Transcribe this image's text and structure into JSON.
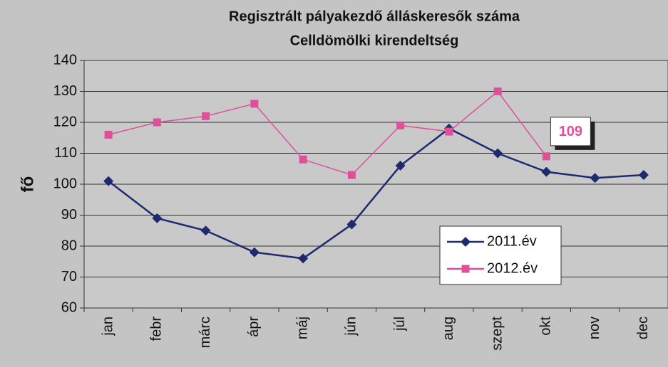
{
  "chart_data": {
    "type": "line",
    "title": "Regisztrált pályakezdő álláskeresők száma",
    "subtitle": "Celldömölki kirendeltség",
    "ylabel": "fő",
    "categories": [
      "jan",
      "febr",
      "márc",
      "ápr",
      "máj",
      "jún",
      "júl",
      "aug",
      "szept",
      "okt",
      "nov",
      "dec"
    ],
    "series": [
      {
        "name": "2011.év",
        "color": "#1f2a6e",
        "marker": "diamond",
        "values": [
          101,
          89,
          85,
          78,
          76,
          87,
          106,
          118,
          110,
          104,
          102,
          103
        ]
      },
      {
        "name": "2012.év",
        "color": "#e0509a",
        "marker": "square",
        "values": [
          116,
          120,
          122,
          126,
          108,
          103,
          119,
          117,
          130,
          109,
          null,
          null
        ]
      }
    ],
    "ylim": [
      60,
      140
    ],
    "yticks": [
      60,
      70,
      80,
      90,
      100,
      110,
      120,
      130,
      140
    ],
    "grid": true
  }
}
